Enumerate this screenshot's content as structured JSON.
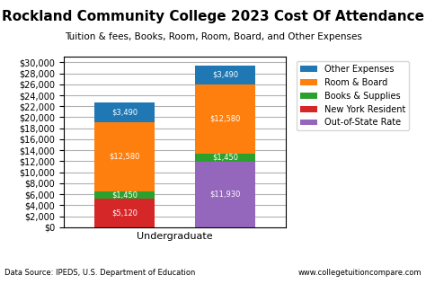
{
  "chart_data": {
    "type": "bar",
    "stacked": true,
    "title": "Rockland Community College 2023 Cost Of Attendance",
    "subtitle": "Tuition & fees, Books, Room, Room, Board, and Other Expenses",
    "xlabel": "Undergraduate",
    "categories": [
      null,
      null
    ],
    "series": [
      {
        "name": "Other Expenses",
        "values": [
          3490,
          3490
        ],
        "value_labels": [
          "$3,490",
          "$3,490"
        ]
      },
      {
        "name": "Room & Board",
        "values": [
          12580,
          12580
        ],
        "value_labels": [
          "$12,580",
          "$12,580"
        ]
      },
      {
        "name": "Books & Supplies",
        "values": [
          1450,
          1450
        ],
        "value_labels": [
          "$1,450",
          "$1,450"
        ]
      },
      {
        "name": "New York Resident",
        "values": [
          5120,
          null
        ],
        "value_labels": [
          "$5,120",
          null
        ]
      },
      {
        "name": "Out-of-State Rate",
        "values": [
          null,
          11930
        ],
        "value_labels": [
          null,
          "$11,930"
        ]
      }
    ],
    "data_labels": true,
    "ylim": [
      0,
      31000
    ],
    "yticks": [
      {
        "value": 0,
        "label": "$0"
      },
      {
        "value": 2000,
        "label": "$2,000"
      },
      {
        "value": 4000,
        "label": "$4,000"
      },
      {
        "value": 6000,
        "label": "$6,000"
      },
      {
        "value": 8000,
        "label": "$8,000"
      },
      {
        "value": 10000,
        "label": "$10,000"
      },
      {
        "value": 12000,
        "label": "$12,000"
      },
      {
        "value": 14000,
        "label": "$14,000"
      },
      {
        "value": 16000,
        "label": "$16,000"
      },
      {
        "value": 18000,
        "label": "$18,000"
      },
      {
        "value": 20000,
        "label": "$20,000"
      },
      {
        "value": 22000,
        "label": "$22,000"
      },
      {
        "value": 24000,
        "label": "$24,000"
      },
      {
        "value": 26000,
        "label": "$26,000"
      },
      {
        "value": 28000,
        "label": "$28,000"
      },
      {
        "value": 30000,
        "label": "$30,000"
      }
    ],
    "grid": true,
    "annotations": [
      "Data Source: IPEDS, U.S. Department of Education",
      "www.collegetuitioncompare.com"
    ]
  }
}
